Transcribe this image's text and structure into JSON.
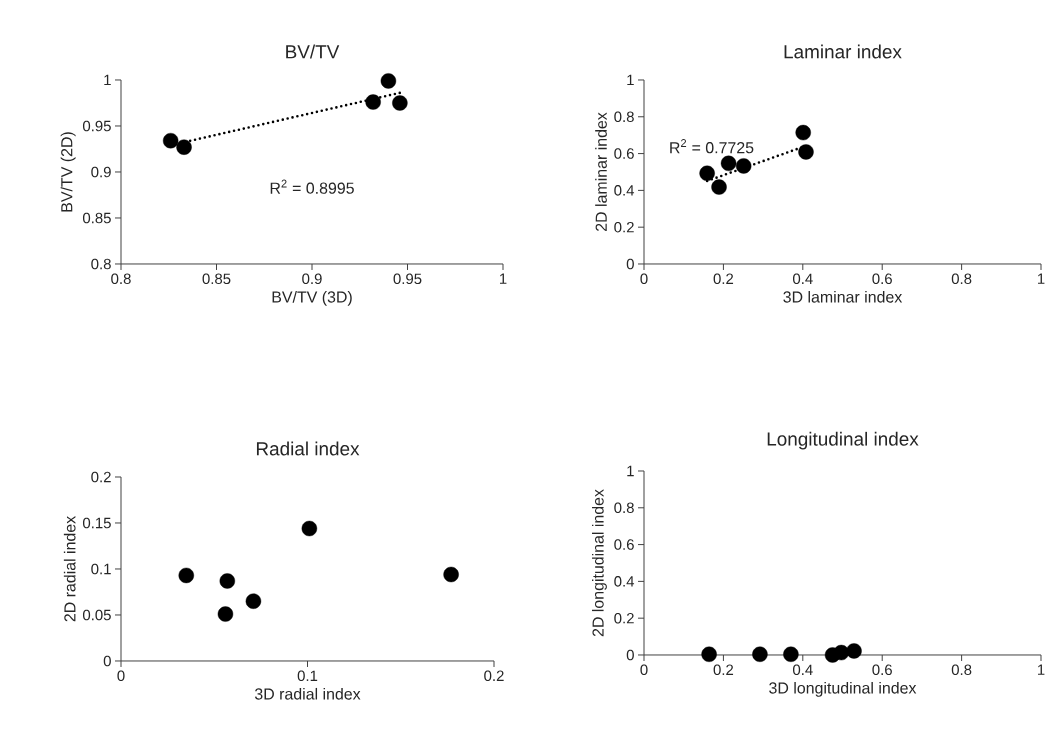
{
  "chart_data": [
    {
      "type": "scatter",
      "title": "BV/TV",
      "xlabel": "BV/TV (3D)",
      "ylabel": "BV/TV (2D)",
      "xlim": [
        0.8,
        1
      ],
      "ylim": [
        0.8,
        1
      ],
      "xticks": [
        0.8,
        0.85,
        0.9,
        0.95,
        1
      ],
      "yticks": [
        0.8,
        0.85,
        0.9,
        0.95,
        1
      ],
      "marker": "circle",
      "series": [
        {
          "color": "#000000",
          "x": [
            0.826,
            0.833,
            0.932,
            0.94,
            0.946
          ],
          "values": [
            0.934,
            0.927,
            0.976,
            0.999,
            0.975
          ]
        },
        {
          "type": "line",
          "color": "#000000",
          "line_style": "dotted",
          "marker": "none",
          "x": [
            0.826,
            0.946
          ],
          "values": [
            0.929,
            0.986
          ]
        }
      ],
      "annotations": [
        "R$^{2}$ = 0.8995"
      ]
    },
    {
      "type": "scatter",
      "title": "Laminar index",
      "xlabel": "3D laminar index",
      "ylabel": "2D laminar index",
      "xlim": [
        0,
        1
      ],
      "ylim": [
        0,
        1
      ],
      "xticks": [
        0,
        0.2,
        0.4,
        0.6,
        0.8,
        1
      ],
      "yticks": [
        0,
        0.2,
        0.4,
        0.6,
        0.8,
        1
      ],
      "marker": "circle",
      "series": [
        {
          "color": "#000000",
          "x": [
            0.159,
            0.189,
            0.213,
            0.251,
            0.401,
            0.408
          ],
          "values": [
            0.493,
            0.418,
            0.547,
            0.533,
            0.714,
            0.609
          ]
        },
        {
          "type": "line",
          "color": "#000000",
          "line_style": "dotted",
          "marker": "none",
          "x": [
            0.159,
            0.408
          ],
          "values": [
            0.451,
            0.642
          ]
        }
      ],
      "annotations": [
        "R$^{2}$ = 0.7725"
      ]
    },
    {
      "type": "scatter",
      "title": "Radial index",
      "xlabel": "3D radial index",
      "ylabel": "2D radial index",
      "xlim": [
        0,
        0.2
      ],
      "ylim": [
        0,
        0.2
      ],
      "xticks": [
        0,
        0.1,
        0.2
      ],
      "yticks": [
        0,
        0.05,
        0.1,
        0.15,
        0.2
      ],
      "marker": "circle",
      "series": [
        {
          "color": "#000000",
          "x": [
            0.035,
            0.057,
            0.056,
            0.071,
            0.101,
            0.177
          ],
          "values": [
            0.093,
            0.087,
            0.051,
            0.065,
            0.144,
            0.094
          ]
        }
      ]
    },
    {
      "type": "scatter",
      "title": "Longitudinal index",
      "xlabel": "3D longitudinal index",
      "ylabel": "2D longitudinal index",
      "xlim": [
        0,
        1
      ],
      "ylim": [
        0,
        1
      ],
      "xticks": [
        0,
        0.2,
        0.4,
        0.6,
        0.8,
        1
      ],
      "yticks": [
        0,
        0.2,
        0.4,
        0.6,
        0.8,
        1
      ],
      "marker": "circle",
      "series": [
        {
          "color": "#000000",
          "x": [
            0.164,
            0.292,
            0.37,
            0.475,
            0.497,
            0.529
          ],
          "values": [
            0.004,
            0.004,
            0.004,
            0.0,
            0.013,
            0.022
          ]
        }
      ]
    }
  ]
}
